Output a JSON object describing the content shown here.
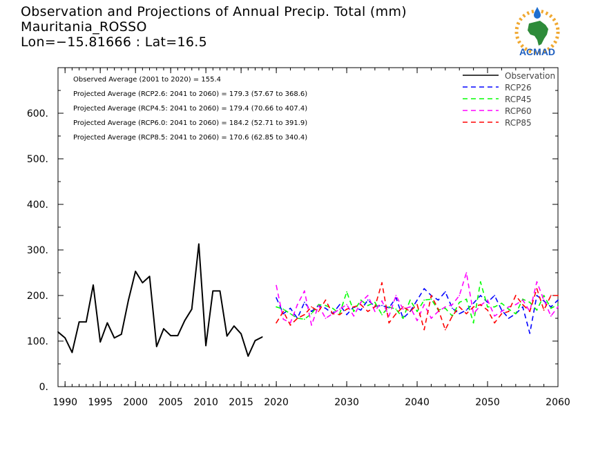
{
  "header": {
    "title_line1": "Observation and Projections of Annual Precip. Total (mm)",
    "title_line2": "Mauritania_ROSSO",
    "title_line3": "Lon=−15.81666 : Lat=16.5"
  },
  "logo": {
    "text": "ACMAD"
  },
  "chart_data": {
    "type": "line",
    "title": "Observation and Projections of Annual Precip. Total (mm)",
    "xlim": [
      1989,
      2060
    ],
    "ylim": [
      0,
      700
    ],
    "x_ticks": [
      1990,
      1995,
      2000,
      2005,
      2010,
      2015,
      2020,
      2030,
      2040,
      2050,
      2060
    ],
    "x_tick_labels": [
      "1990",
      "1995",
      "2000",
      "2005",
      "2010",
      "2015",
      "2020",
      "2030",
      "2040",
      "2050",
      "2060"
    ],
    "y_ticks": [
      0,
      100,
      200,
      300,
      400,
      500,
      600
    ],
    "y_tick_labels": [
      "0.",
      "100.",
      "200.",
      "300.",
      "400.",
      "500.",
      "600."
    ],
    "grid": false,
    "legend_position": "top-right",
    "annotations": [
      "Observed Average (2001 to 2020) = 155.4",
      "Projected Average (RCP2.6: 2041 to 2060) = 179.3 (57.67 to 368.6)",
      "Projected Average (RCP4.5: 2041 to 2060) = 179.4 (70.66 to 407.4)",
      "Projected Average (RCP6.0: 2041 to 2060) = 184.2 (52.71 to 391.9)",
      "Projected Average (RCP8.5: 2041 to 2060) = 170.6 (62.85 to 340.4)"
    ],
    "series": [
      {
        "name": "Observation",
        "color": "#000000",
        "dashed": false,
        "x": [
          1989,
          1990,
          1991,
          1992,
          1993,
          1994,
          1995,
          1996,
          1997,
          1998,
          1999,
          2000,
          2001,
          2002,
          2003,
          2004,
          2005,
          2006,
          2007,
          2008,
          2009,
          2010,
          2011,
          2012,
          2013,
          2014,
          2015,
          2016,
          2017,
          2018,
          2019,
          2020
        ],
        "values": [
          120,
          107,
          75,
          142,
          142,
          223,
          98,
          140,
          107,
          115,
          190,
          253,
          228,
          242,
          88,
          127,
          112,
          112,
          145,
          170,
          313,
          90,
          210,
          210,
          111,
          133,
          116,
          67,
          101,
          109,
          null,
          null
        ]
      },
      {
        "name": "RCP26",
        "color": "#0000ff",
        "dashed": true,
        "x": [
          2020,
          2021,
          2022,
          2023,
          2024,
          2025,
          2026,
          2027,
          2028,
          2029,
          2030,
          2031,
          2032,
          2033,
          2034,
          2035,
          2036,
          2037,
          2038,
          2039,
          2040,
          2041,
          2042,
          2043,
          2044,
          2045,
          2046,
          2047,
          2048,
          2049,
          2050,
          2051,
          2052,
          2053,
          2054,
          2055,
          2056,
          2057,
          2058,
          2059,
          2060
        ],
        "values": [
          195,
          160,
          172,
          150,
          185,
          165,
          178,
          172,
          160,
          180,
          158,
          175,
          168,
          190,
          176,
          178,
          173,
          195,
          150,
          165,
          190,
          215,
          200,
          190,
          208,
          172,
          160,
          168,
          183,
          200,
          185,
          200,
          168,
          150,
          160,
          175,
          117,
          200,
          188,
          175,
          190
        ]
      },
      {
        "name": "RCP45",
        "color": "#00ff00",
        "dashed": true,
        "x": [
          2020,
          2021,
          2022,
          2023,
          2024,
          2025,
          2026,
          2027,
          2028,
          2029,
          2030,
          2031,
          2032,
          2033,
          2034,
          2035,
          2036,
          2037,
          2038,
          2039,
          2040,
          2041,
          2042,
          2043,
          2044,
          2045,
          2046,
          2047,
          2048,
          2049,
          2050,
          2051,
          2052,
          2053,
          2054,
          2055,
          2056,
          2057,
          2058,
          2059,
          2060
        ],
        "values": [
          175,
          170,
          160,
          150,
          148,
          160,
          180,
          178,
          172,
          160,
          208,
          165,
          190,
          178,
          185,
          158,
          175,
          170,
          150,
          190,
          165,
          190,
          192,
          168,
          172,
          155,
          185,
          192,
          140,
          230,
          175,
          175,
          183,
          170,
          160,
          192,
          185,
          168,
          200,
          172,
          180
        ]
      },
      {
        "name": "RCP60",
        "color": "#ff00ff",
        "dashed": true,
        "x": [
          2020,
          2021,
          2022,
          2023,
          2024,
          2025,
          2026,
          2027,
          2028,
          2029,
          2030,
          2031,
          2032,
          2033,
          2034,
          2035,
          2036,
          2037,
          2038,
          2039,
          2040,
          2041,
          2042,
          2043,
          2044,
          2045,
          2046,
          2047,
          2048,
          2049,
          2050,
          2051,
          2052,
          2053,
          2054,
          2055,
          2056,
          2057,
          2058,
          2059,
          2060
        ],
        "values": [
          222,
          148,
          140,
          180,
          210,
          135,
          178,
          150,
          160,
          170,
          180,
          155,
          185,
          200,
          165,
          188,
          155,
          200,
          170,
          175,
          145,
          180,
          150,
          165,
          175,
          180,
          200,
          250,
          160,
          178,
          190,
          155,
          165,
          175,
          180,
          190,
          165,
          230,
          190,
          155,
          175
        ]
      },
      {
        "name": "RCP85",
        "color": "#ff0000",
        "dashed": true,
        "x": [
          2020,
          2021,
          2022,
          2023,
          2024,
          2025,
          2026,
          2027,
          2028,
          2029,
          2030,
          2031,
          2032,
          2033,
          2034,
          2035,
          2036,
          2037,
          2038,
          2039,
          2040,
          2041,
          2042,
          2043,
          2044,
          2045,
          2046,
          2047,
          2048,
          2049,
          2050,
          2051,
          2052,
          2053,
          2054,
          2055,
          2056,
          2057,
          2058,
          2059,
          2060
        ],
        "values": [
          140,
          165,
          135,
          150,
          158,
          175,
          165,
          190,
          160,
          158,
          170,
          175,
          180,
          165,
          175,
          228,
          140,
          160,
          175,
          165,
          180,
          125,
          200,
          170,
          125,
          155,
          175,
          160,
          175,
          180,
          168,
          140,
          160,
          165,
          200,
          180,
          165,
          215,
          168,
          200,
          200
        ]
      }
    ]
  }
}
